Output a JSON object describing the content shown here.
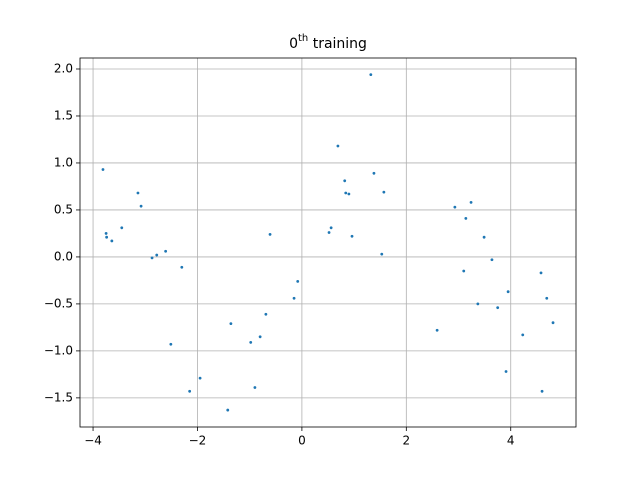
{
  "chart_data": {
    "type": "scatter",
    "title": [
      "0",
      "th",
      " training"
    ],
    "color": "#1f77b4",
    "grid": true,
    "xlim": [
      -4.25,
      5.25
    ],
    "ylim": [
      -1.81,
      2.117
    ],
    "xticks": [
      {
        "value": -4,
        "label": "−4"
      },
      {
        "value": -2,
        "label": "−2"
      },
      0,
      2,
      4
    ],
    "yticks": [
      {
        "value": -1.5,
        "label": "−1.5"
      },
      {
        "value": -1,
        "label": "−1.0"
      },
      {
        "value": -0.5,
        "label": "−0.5"
      },
      {
        "value": 0,
        "label": "0.0"
      },
      0.5,
      {
        "value": 1,
        "label": "1.0"
      },
      1.5,
      {
        "value": 2,
        "label": "2.0"
      }
    ],
    "x": [
      -3.81,
      -3.75,
      -3.74,
      -3.64,
      -3.45,
      -3.14,
      -3.08,
      -2.87,
      -2.78,
      -2.61,
      -2.51,
      -2.3,
      -2.15,
      -1.95,
      -1.42,
      -1.36,
      -0.98,
      -0.9,
      -0.8,
      -0.69,
      -0.61,
      -0.15,
      -0.08,
      0.52,
      0.56,
      0.69,
      0.82,
      0.84,
      0.9,
      0.96,
      1.32,
      1.38,
      1.53,
      1.57,
      2.59,
      2.93,
      3.1,
      3.14,
      3.24,
      3.37,
      3.49,
      3.64,
      3.75,
      3.91,
      3.95,
      4.23,
      4.58,
      4.6,
      4.69,
      4.81
    ],
    "values": [
      0.93,
      0.25,
      0.21,
      0.17,
      0.31,
      0.68,
      0.54,
      -0.01,
      0.02,
      0.06,
      -0.93,
      -0.11,
      -1.43,
      -1.29,
      -1.63,
      -0.71,
      -0.91,
      -1.39,
      -0.85,
      -0.61,
      0.24,
      -0.44,
      -0.26,
      0.26,
      0.31,
      1.18,
      0.81,
      0.68,
      0.67,
      0.22,
      1.94,
      0.89,
      0.03,
      0.69,
      -0.78,
      0.53,
      -0.15,
      0.41,
      0.58,
      -0.5,
      0.21,
      -0.03,
      -0.54,
      -1.22,
      -0.37,
      -0.83,
      -0.17,
      -1.43,
      -0.44,
      -0.7
    ]
  }
}
